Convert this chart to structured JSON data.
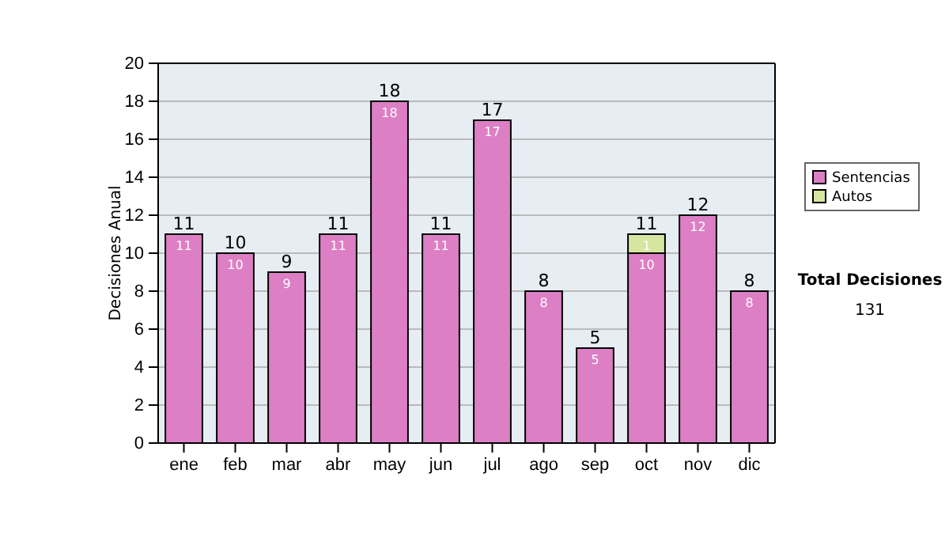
{
  "chart_data": {
    "type": "bar",
    "stacked": true,
    "ylabel": "Decisiones Anual",
    "categories": [
      "ene",
      "feb",
      "mar",
      "abr",
      "may",
      "jun",
      "jul",
      "ago",
      "sep",
      "oct",
      "nov",
      "dic"
    ],
    "series": [
      {
        "name": "Sentencias",
        "color": "#dd7fc4",
        "values": [
          11,
          10,
          9,
          11,
          18,
          11,
          17,
          8,
          5,
          10,
          12,
          8
        ],
        "value_labels": [
          "11",
          "10",
          "9",
          "11",
          "18",
          "11",
          "17",
          "8",
          "5",
          "10",
          "12",
          "8"
        ]
      },
      {
        "name": "Autos",
        "color": "#d6e6a0",
        "values": [
          0,
          0,
          0,
          0,
          0,
          0,
          0,
          0,
          0,
          1,
          0,
          0
        ],
        "value_labels": [
          null,
          null,
          null,
          null,
          null,
          null,
          null,
          null,
          null,
          "1",
          null,
          null
        ]
      }
    ],
    "totals": [
      "11",
      "10",
      "9",
      "11",
      "18",
      "11",
      "17",
      "8",
      "5",
      "11",
      "12",
      "8"
    ],
    "ylim": [
      0,
      20
    ],
    "yticks": [
      0,
      2,
      4,
      6,
      8,
      10,
      12,
      14,
      16,
      18,
      20
    ],
    "grid": "y",
    "legend": "right",
    "annotations": [
      "Total Decisiones",
      "131"
    ]
  }
}
